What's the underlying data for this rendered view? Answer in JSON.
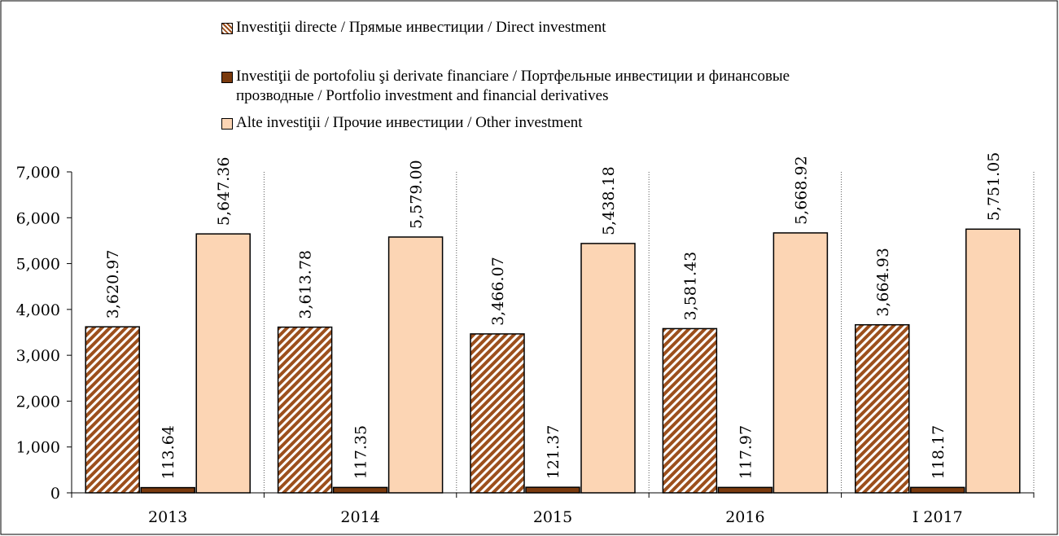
{
  "chart_data": {
    "type": "bar",
    "categories": [
      "2013",
      "2014",
      "2015",
      "2016",
      "I 2017"
    ],
    "series": [
      {
        "name": "Investiţii directe / Прямые инвестиции / Direct investment",
        "color": "#9c4f1c",
        "hatch": true,
        "values": [
          3620.97,
          3613.78,
          3466.07,
          3581.43,
          3664.93
        ],
        "value_labels": [
          "3,620.97",
          "3,613.78",
          "3,466.07",
          "3,581.43",
          "3,664.93"
        ]
      },
      {
        "name": "Investiţii de portofoliu şi derivate financiare / Портфельные инвестиции и финансовые прозводные / Portfolio investment and financial derivatives",
        "color": "#7a3a0e",
        "hatch": false,
        "values": [
          113.64,
          117.35,
          121.37,
          117.97,
          118.17
        ],
        "value_labels": [
          "113.64",
          "117.35",
          "121.37",
          "117.97",
          "118.17"
        ]
      },
      {
        "name": "Alte investiţii / Прочие инвестиции / Other investment",
        "color": "#fcd5b4",
        "hatch": false,
        "values": [
          5647.36,
          5579.0,
          5438.18,
          5668.92,
          5751.05
        ],
        "value_labels": [
          "5,647.36",
          "5,579.00",
          "5,438.18",
          "5,668.92",
          "5,751.05"
        ]
      }
    ],
    "ylim": [
      0,
      7000
    ],
    "yticks": [
      0,
      {
        "value": 1000,
        "label": "1,000"
      },
      {
        "value": 2000,
        "label": "2,000"
      },
      {
        "value": 3000,
        "label": "3,000"
      },
      {
        "value": 4000,
        "label": "4,000"
      },
      {
        "value": 5000,
        "label": "5,000"
      },
      {
        "value": 6000,
        "label": "6,000"
      },
      {
        "value": 7000,
        "label": "7,000"
      }
    ],
    "category_separators": true,
    "legend": "top"
  }
}
